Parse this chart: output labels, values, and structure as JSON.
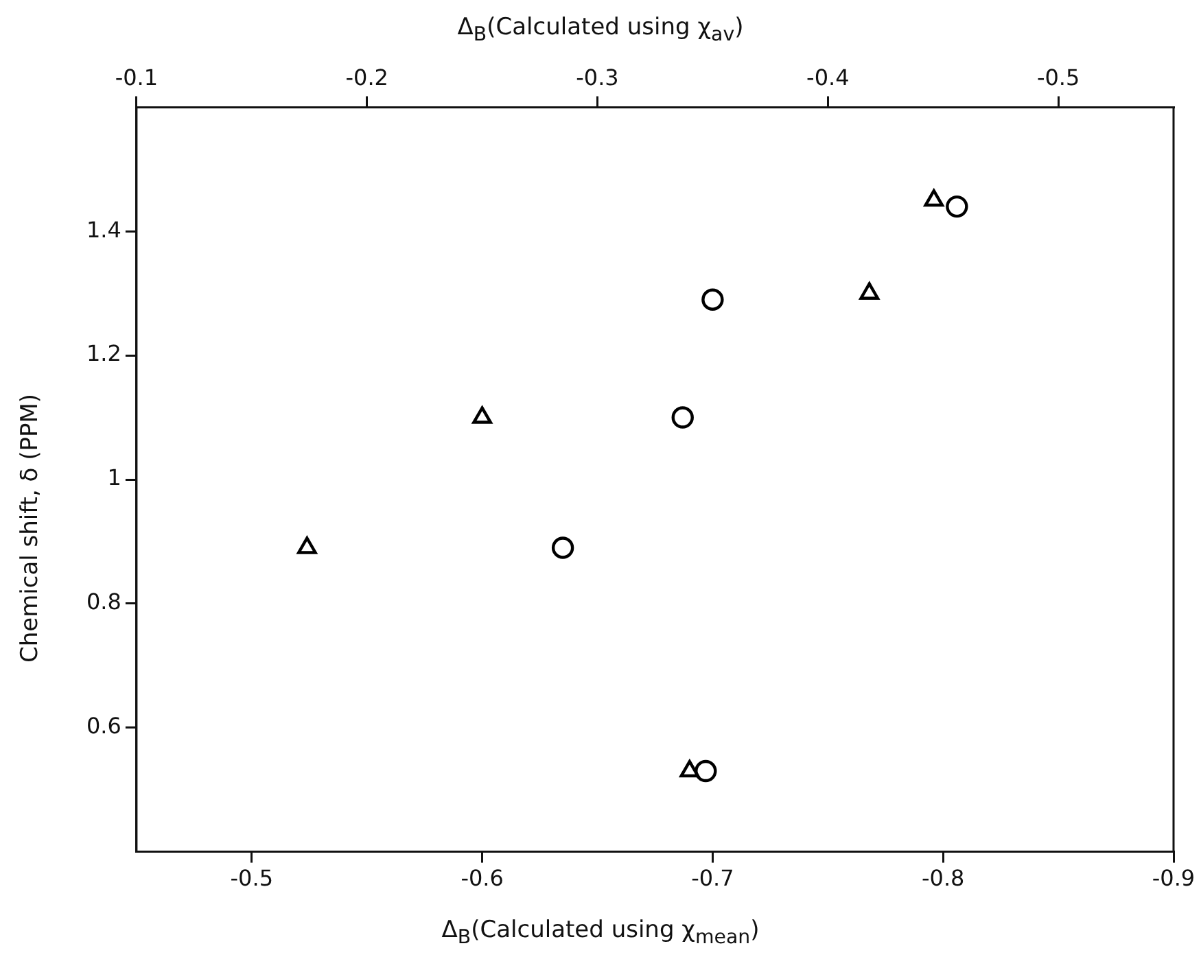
{
  "chart_data": {
    "type": "scatter",
    "xlabel": "Δ$_{B}$(Calculated using χ$_{mean}$)",
    "x2label": "Δ$_{B}$(Calculated using χ$_{av}$)",
    "ylabel": "Chemical shift, δ (PPM)",
    "xlim": [
      -0.45,
      -0.9
    ],
    "xticks": [
      -0.5,
      -0.6,
      -0.7,
      -0.8,
      -0.9
    ],
    "x2lim": [
      -0.1,
      -0.55
    ],
    "x2ticks": [
      -0.1,
      -0.2,
      -0.3,
      -0.4,
      -0.5
    ],
    "ylim": [
      0.4,
      1.6
    ],
    "yticks": [
      0.6,
      0.8,
      1.0,
      1.2,
      1.4
    ],
    "grid": false,
    "legend": false,
    "series": [
      {
        "color": "#000000",
        "marker": "triangle",
        "axis": "x2",
        "x": [
          -0.174,
          -0.25,
          -0.34,
          -0.418,
          -0.446
        ],
        "values": [
          0.89,
          1.1,
          0.53,
          1.3,
          1.45
        ]
      },
      {
        "color": "#000000",
        "marker": "circle",
        "x": [
          -0.635,
          -0.687,
          -0.697,
          -0.7,
          -0.806
        ],
        "values": [
          0.89,
          1.1,
          0.53,
          1.29,
          1.44
        ]
      }
    ]
  }
}
